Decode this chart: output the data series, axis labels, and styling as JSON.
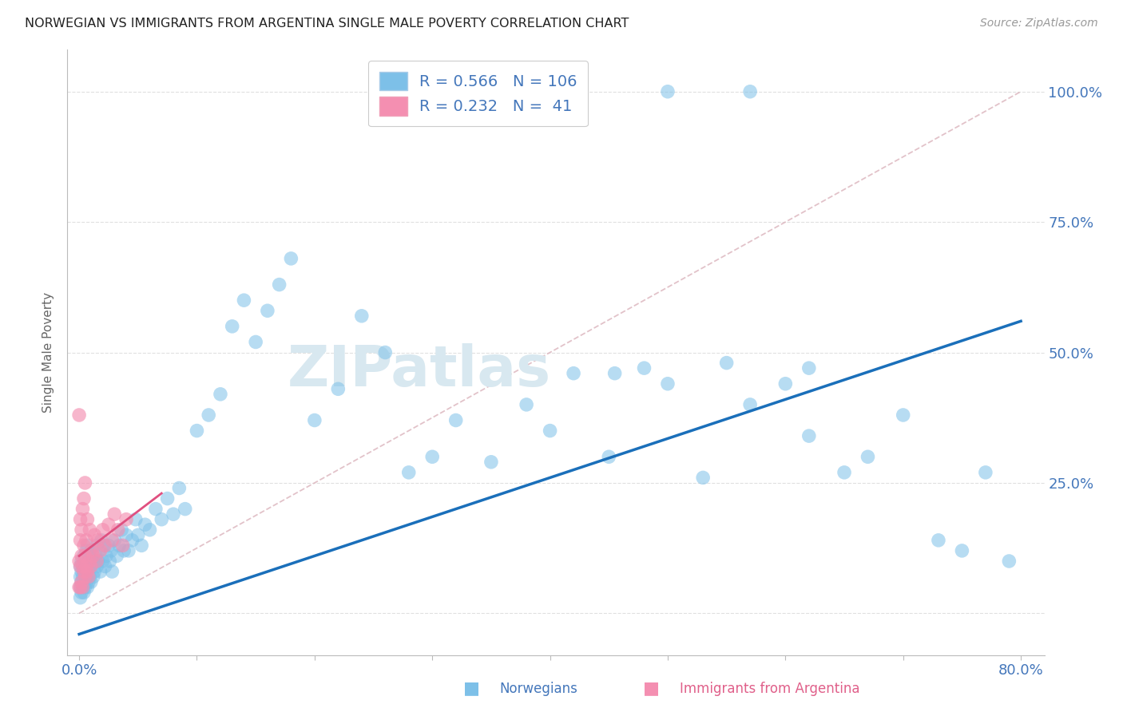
{
  "title": "NORWEGIAN VS IMMIGRANTS FROM ARGENTINA SINGLE MALE POVERTY CORRELATION CHART",
  "source": "Source: ZipAtlas.com",
  "ylabel": "Single Male Poverty",
  "legend_entries": [
    "Norwegians",
    "Immigrants from Argentina"
  ],
  "r_norwegian": 0.566,
  "n_norwegian": 106,
  "r_argentina": 0.232,
  "n_argentina": 41,
  "norwegian_color": "#7dc0e8",
  "argentina_color": "#f48fb1",
  "norwegian_line_color": "#1a6fba",
  "argentina_line_color": "#e05080",
  "ref_line_color": "#ddb8c0",
  "title_color": "#222222",
  "tick_color": "#4477bb",
  "ylabel_color": "#666666",
  "background_color": "#ffffff",
  "grid_color": "#e0e0e0",
  "watermark_color": "#d8e8f0",
  "watermark": "ZIPatlas",
  "xlim": [
    -0.01,
    0.82
  ],
  "ylim": [
    -0.08,
    1.08
  ],
  "xtick_vals": [
    0.0,
    0.1,
    0.2,
    0.3,
    0.4,
    0.5,
    0.6,
    0.7,
    0.8
  ],
  "xtick_labels": [
    "0.0%",
    "",
    "",
    "",
    "",
    "",
    "",
    "",
    "80.0%"
  ],
  "ytick_vals": [
    0.0,
    0.25,
    0.5,
    0.75,
    1.0
  ],
  "ytick_labels": [
    "",
    "25.0%",
    "50.0%",
    "75.0%",
    "100.0%"
  ],
  "nor_x": [
    0.001,
    0.001,
    0.001,
    0.001,
    0.002,
    0.002,
    0.002,
    0.002,
    0.003,
    0.003,
    0.003,
    0.004,
    0.004,
    0.004,
    0.005,
    0.005,
    0.005,
    0.006,
    0.006,
    0.006,
    0.007,
    0.007,
    0.007,
    0.008,
    0.008,
    0.009,
    0.009,
    0.01,
    0.01,
    0.01,
    0.012,
    0.012,
    0.013,
    0.014,
    0.015,
    0.015,
    0.016,
    0.017,
    0.018,
    0.019,
    0.02,
    0.021,
    0.022,
    0.023,
    0.025,
    0.026,
    0.027,
    0.028,
    0.03,
    0.032,
    0.034,
    0.036,
    0.038,
    0.04,
    0.042,
    0.045,
    0.048,
    0.05,
    0.053,
    0.056,
    0.06,
    0.065,
    0.07,
    0.075,
    0.08,
    0.085,
    0.09,
    0.1,
    0.11,
    0.12,
    0.13,
    0.14,
    0.15,
    0.16,
    0.17,
    0.18,
    0.2,
    0.22,
    0.24,
    0.26,
    0.28,
    0.3,
    0.32,
    0.35,
    0.38,
    0.4,
    0.42,
    0.45,
    0.48,
    0.5,
    0.53,
    0.55,
    0.57,
    0.6,
    0.62,
    0.65,
    0.67,
    0.7,
    0.73,
    0.75,
    0.77,
    0.79,
    0.5,
    0.57,
    0.455,
    0.62
  ],
  "nor_y": [
    0.03,
    0.05,
    0.07,
    0.09,
    0.04,
    0.06,
    0.08,
    0.1,
    0.05,
    0.07,
    0.09,
    0.04,
    0.08,
    0.11,
    0.05,
    0.07,
    0.1,
    0.06,
    0.08,
    0.12,
    0.05,
    0.09,
    0.13,
    0.06,
    0.1,
    0.07,
    0.11,
    0.06,
    0.09,
    0.12,
    0.07,
    0.1,
    0.08,
    0.11,
    0.09,
    0.13,
    0.1,
    0.12,
    0.08,
    0.14,
    0.1,
    0.13,
    0.09,
    0.11,
    0.13,
    0.1,
    0.12,
    0.08,
    0.14,
    0.11,
    0.13,
    0.16,
    0.12,
    0.15,
    0.12,
    0.14,
    0.18,
    0.15,
    0.13,
    0.17,
    0.16,
    0.2,
    0.18,
    0.22,
    0.19,
    0.24,
    0.2,
    0.35,
    0.38,
    0.42,
    0.55,
    0.6,
    0.52,
    0.58,
    0.63,
    0.68,
    0.37,
    0.43,
    0.57,
    0.5,
    0.27,
    0.3,
    0.37,
    0.29,
    0.4,
    0.35,
    0.46,
    0.3,
    0.47,
    0.44,
    0.26,
    0.48,
    0.4,
    0.44,
    0.34,
    0.27,
    0.3,
    0.38,
    0.14,
    0.12,
    0.27,
    0.1,
    1.0,
    1.0,
    0.46,
    0.47
  ],
  "arg_x": [
    0.0,
    0.0,
    0.0,
    0.001,
    0.001,
    0.001,
    0.001,
    0.002,
    0.002,
    0.002,
    0.003,
    0.003,
    0.003,
    0.004,
    0.004,
    0.004,
    0.005,
    0.005,
    0.005,
    0.006,
    0.006,
    0.007,
    0.007,
    0.008,
    0.009,
    0.009,
    0.01,
    0.011,
    0.012,
    0.013,
    0.015,
    0.016,
    0.018,
    0.02,
    0.022,
    0.025,
    0.028,
    0.03,
    0.033,
    0.037,
    0.04
  ],
  "arg_y": [
    0.05,
    0.1,
    0.38,
    0.05,
    0.09,
    0.14,
    0.18,
    0.06,
    0.11,
    0.16,
    0.05,
    0.09,
    0.2,
    0.08,
    0.13,
    0.22,
    0.07,
    0.11,
    0.25,
    0.09,
    0.14,
    0.08,
    0.18,
    0.07,
    0.1,
    0.16,
    0.09,
    0.12,
    0.11,
    0.15,
    0.1,
    0.14,
    0.12,
    0.16,
    0.13,
    0.17,
    0.14,
    0.19,
    0.16,
    0.13,
    0.18
  ],
  "nor_line_x": [
    0.0,
    0.8
  ],
  "nor_line_y": [
    -0.04,
    0.56
  ],
  "arg_line_x": [
    0.0,
    0.07
  ],
  "arg_line_y": [
    0.11,
    0.23
  ]
}
